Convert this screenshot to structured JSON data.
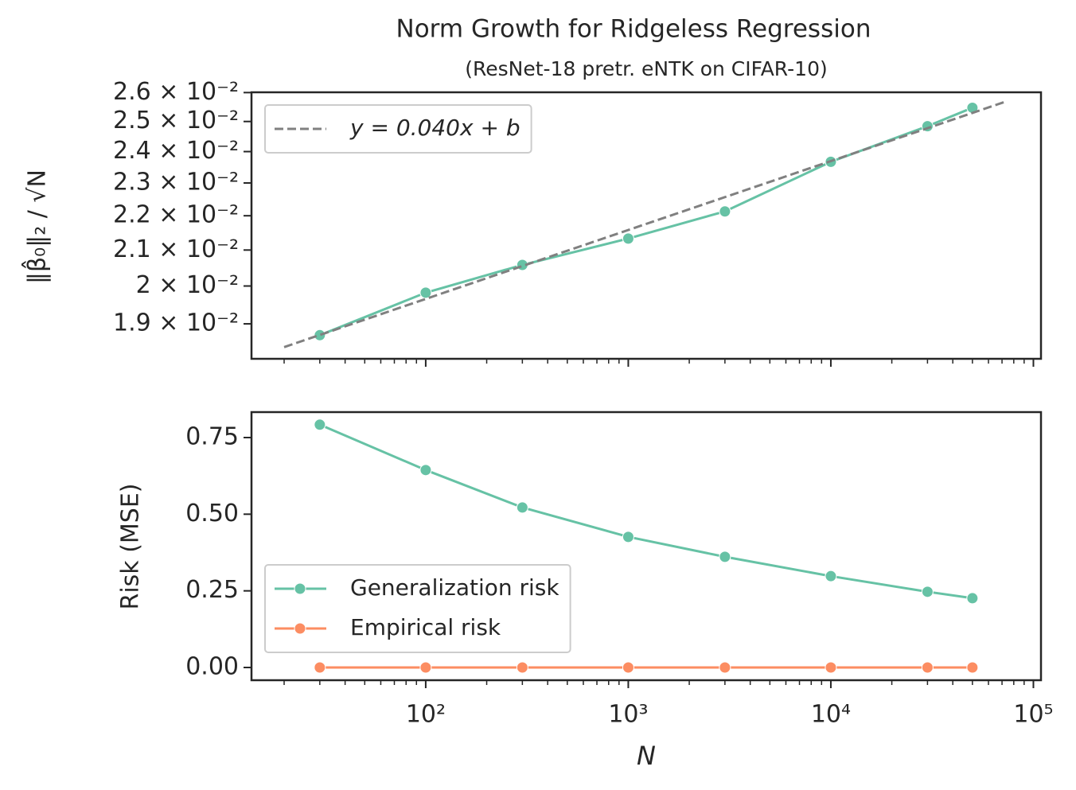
{
  "chart_data": [
    {
      "type": "line",
      "title": "Norm Growth for Ridgeless Regression",
      "subtitle": "(ResNet-18 pretr. eNTK on CIFAR-10)",
      "y_label": "‖β̂₀‖₂ / √N",
      "xscale": "log",
      "yscale": "log",
      "xlim": [
        13.8,
        109000
      ],
      "xticks": [
        100,
        1000,
        10000,
        100000
      ],
      "ylim": [
        0.01812,
        0.02601
      ],
      "yticks": [
        {
          "value": 0.019,
          "label": "1.9 × 10⁻²"
        },
        {
          "value": 0.02,
          "label": "2 × 10⁻²"
        },
        {
          "value": 0.021,
          "label": "2.1 × 10⁻²"
        },
        {
          "value": 0.022,
          "label": "2.2 × 10⁻²"
        },
        {
          "value": 0.023,
          "label": "2.3 × 10⁻²"
        },
        {
          "value": 0.024,
          "label": "2.4 × 10⁻²"
        },
        {
          "value": 0.025,
          "label": "2.5 × 10⁻²"
        },
        {
          "value": 0.026,
          "label": "2.6 × 10⁻²"
        }
      ],
      "legend": "upper left",
      "series": [
        {
          "color": "#66c2a5",
          "marker": true,
          "linestyle": "solid",
          "x": [
            30,
            100,
            300,
            1000,
            3000,
            10000,
            30000,
            50000
          ],
          "values": [
            0.01871,
            0.01982,
            0.02058,
            0.02133,
            0.02213,
            0.02367,
            0.02484,
            0.02547
          ]
        },
        {
          "name": "y = 0.040x + b",
          "color": "#808080",
          "marker": false,
          "linestyle": "dashed",
          "x": [
            20,
            72000
          ],
          "values": [
            0.01841,
            0.02567
          ]
        }
      ]
    },
    {
      "type": "line",
      "x_label": "N",
      "y_label": "Risk (MSE)",
      "xscale": "log",
      "yscale": "linear",
      "xlim": [
        13.8,
        109000
      ],
      "xticks": [
        {
          "value": 100,
          "label": "10²"
        },
        {
          "value": 1000,
          "label": "10³"
        },
        {
          "value": 10000,
          "label": "10⁴"
        },
        {
          "value": 100000,
          "label": "10⁵"
        }
      ],
      "ylim": [
        -0.0415,
        0.833
      ],
      "yticks": [
        {
          "value": 0,
          "label": "0.00"
        },
        0.25,
        {
          "value": 0.5,
          "label": "0.50"
        },
        0.75
      ],
      "legend": "lower left",
      "series": [
        {
          "name": "Generalization risk",
          "color": "#66c2a5",
          "marker": true,
          "linestyle": "solid",
          "x": [
            30,
            100,
            300,
            1000,
            3000,
            10000,
            30000,
            50000
          ],
          "values": [
            0.792,
            0.644,
            0.522,
            0.426,
            0.361,
            0.298,
            0.247,
            0.226
          ]
        },
        {
          "name": "Empirical risk",
          "color": "#fc8d62",
          "marker": true,
          "linestyle": "solid",
          "x": [
            30,
            100,
            300,
            1000,
            3000,
            10000,
            30000,
            50000
          ],
          "values": [
            0,
            0,
            0,
            0,
            0,
            0,
            0,
            0
          ]
        }
      ]
    }
  ]
}
